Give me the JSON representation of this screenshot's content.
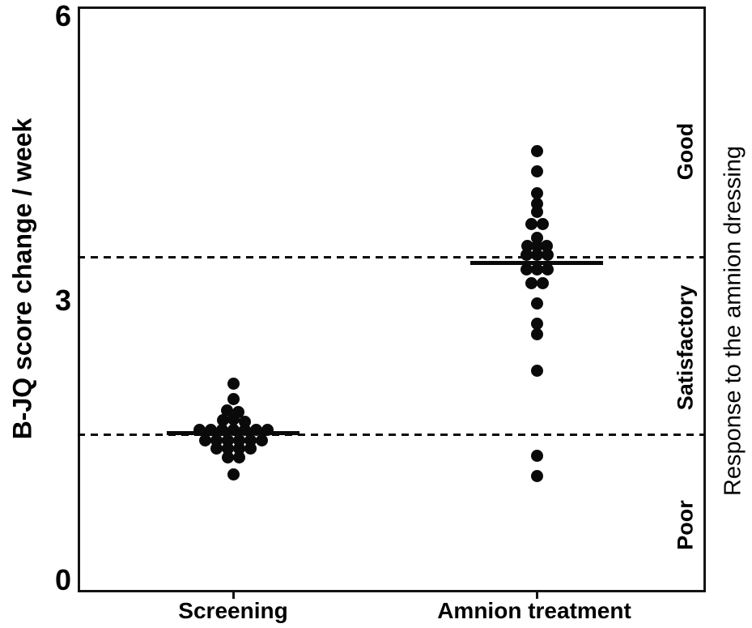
{
  "colors": {
    "foreground": "#000000",
    "background": "#ffffff"
  },
  "chart_data": {
    "type": "scatter",
    "subtype": "dot-plot-beeswarm",
    "title": "",
    "ylabel": "B-JQ score change / week",
    "xlabel": "",
    "ylim": [
      0,
      6
    ],
    "yticks": [
      0,
      3,
      6
    ],
    "ytick_labels": [
      "0",
      "3",
      "6"
    ],
    "categories": [
      "Screening",
      "Amnion treatment"
    ],
    "grid": false,
    "legend": false,
    "right_axis_label": "Response to the amnion dressing",
    "response_zones": [
      {
        "label": "Good",
        "range": "above 3.43"
      },
      {
        "label": "Satisfactory",
        "range": "1.61 to 3.43"
      },
      {
        "label": "Poor",
        "range": "below 1.61"
      }
    ],
    "reference_lines": [
      {
        "value": 3.43,
        "style": "dashed"
      },
      {
        "value": 1.61,
        "style": "dashed"
      }
    ],
    "series": [
      {
        "name": "Screening",
        "median": 1.63,
        "points": [
          {
            "dx": 0,
            "v": 2.14
          },
          {
            "dx": 0,
            "v": 1.98
          },
          {
            "dx": -8,
            "v": 1.86
          },
          {
            "dx": 6,
            "v": 1.85
          },
          {
            "dx": -13,
            "v": 1.76
          },
          {
            "dx": 0,
            "v": 1.77
          },
          {
            "dx": 14,
            "v": 1.75
          },
          {
            "dx": -42,
            "v": 1.66
          },
          {
            "dx": -28,
            "v": 1.66
          },
          {
            "dx": -14,
            "v": 1.66
          },
          {
            "dx": 0,
            "v": 1.66
          },
          {
            "dx": 14,
            "v": 1.66
          },
          {
            "dx": 28,
            "v": 1.66
          },
          {
            "dx": 42,
            "v": 1.66
          },
          {
            "dx": -35,
            "v": 1.56
          },
          {
            "dx": -21,
            "v": 1.56
          },
          {
            "dx": -7,
            "v": 1.56
          },
          {
            "dx": 7,
            "v": 1.56
          },
          {
            "dx": 21,
            "v": 1.56
          },
          {
            "dx": 35,
            "v": 1.56
          },
          {
            "dx": -21,
            "v": 1.47
          },
          {
            "dx": -7,
            "v": 1.47
          },
          {
            "dx": 7,
            "v": 1.47
          },
          {
            "dx": 21,
            "v": 1.47
          },
          {
            "dx": -7,
            "v": 1.38
          },
          {
            "dx": 7,
            "v": 1.38
          },
          {
            "dx": 0,
            "v": 1.21
          }
        ]
      },
      {
        "name": "Amnion treatment",
        "median": 3.37,
        "points": [
          {
            "dx": 0,
            "v": 4.52
          },
          {
            "dx": 0,
            "v": 4.31
          },
          {
            "dx": 0,
            "v": 4.09
          },
          {
            "dx": 0,
            "v": 3.98
          },
          {
            "dx": 0,
            "v": 3.9
          },
          {
            "dx": -7,
            "v": 3.77
          },
          {
            "dx": 7,
            "v": 3.77
          },
          {
            "dx": 0,
            "v": 3.63
          },
          {
            "dx": -12,
            "v": 3.55
          },
          {
            "dx": 0,
            "v": 3.55
          },
          {
            "dx": 12,
            "v": 3.55
          },
          {
            "dx": -13,
            "v": 3.46
          },
          {
            "dx": 0,
            "v": 3.46
          },
          {
            "dx": 13,
            "v": 3.46
          },
          {
            "dx": -13,
            "v": 3.31
          },
          {
            "dx": 0,
            "v": 3.31
          },
          {
            "dx": 13,
            "v": 3.31
          },
          {
            "dx": -7,
            "v": 3.17
          },
          {
            "dx": 7,
            "v": 3.17
          },
          {
            "dx": 0,
            "v": 2.96
          },
          {
            "dx": 0,
            "v": 2.75
          },
          {
            "dx": 0,
            "v": 2.64
          },
          {
            "dx": 0,
            "v": 2.27
          },
          {
            "dx": 0,
            "v": 1.4
          },
          {
            "dx": 0,
            "v": 1.19
          }
        ]
      }
    ]
  }
}
